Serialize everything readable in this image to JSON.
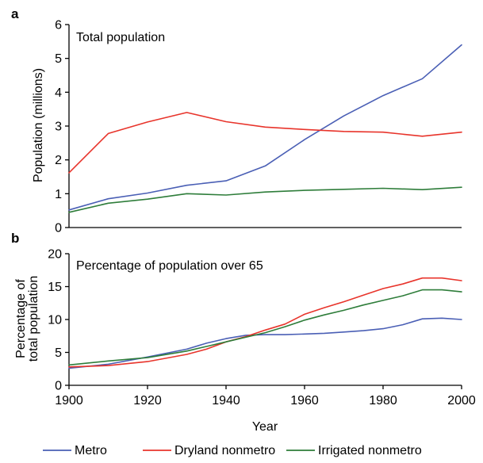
{
  "chart_data": [
    {
      "panel": "a",
      "type": "line",
      "title": "Total population",
      "ylabel": "Population (millions)",
      "xlabel": "",
      "xlim": [
        1900,
        2000
      ],
      "ylim": [
        0,
        6
      ],
      "yticks": [
        "0",
        "1",
        "2",
        "3",
        "4",
        "5",
        "6"
      ],
      "xticks": [],
      "grid": false,
      "series": [
        {
          "name": "Metro",
          "color": "#4a5fb5",
          "x": [
            1900,
            1910,
            1920,
            1930,
            1940,
            1950,
            1960,
            1970,
            1980,
            1990,
            2000
          ],
          "values": [
            0.52,
            0.85,
            1.02,
            1.25,
            1.38,
            1.82,
            2.6,
            3.3,
            3.9,
            4.4,
            5.4
          ]
        },
        {
          "name": "Dryland nonmetro",
          "color": "#e8342b",
          "x": [
            1900,
            1910,
            1920,
            1930,
            1940,
            1950,
            1960,
            1970,
            1980,
            1990,
            2000
          ],
          "values": [
            1.62,
            2.78,
            3.12,
            3.4,
            3.13,
            2.97,
            2.9,
            2.84,
            2.82,
            2.7,
            2.82
          ]
        },
        {
          "name": "Irrigated nonmetro",
          "color": "#2e7d3a",
          "x": [
            1900,
            1910,
            1920,
            1930,
            1940,
            1950,
            1960,
            1970,
            1980,
            1990,
            2000
          ],
          "values": [
            0.45,
            0.72,
            0.84,
            1.0,
            0.96,
            1.05,
            1.1,
            1.13,
            1.16,
            1.12,
            1.19
          ]
        }
      ]
    },
    {
      "panel": "b",
      "type": "line",
      "title": "Percentage of population over 65",
      "ylabel_lines": [
        "Percentage of",
        "total population"
      ],
      "xlabel": "Year",
      "xlim": [
        1900,
        2000
      ],
      "ylim": [
        0,
        20
      ],
      "yticks": [
        "0",
        "5",
        "10",
        "15",
        "20"
      ],
      "xticks": [
        "1900",
        "1920",
        "1940",
        "1960",
        "1980",
        "2000"
      ],
      "grid": false,
      "series": [
        {
          "name": "Metro",
          "color": "#4a5fb5",
          "x": [
            1900,
            1910,
            1920,
            1930,
            1935,
            1940,
            1945,
            1950,
            1955,
            1960,
            1965,
            1970,
            1975,
            1980,
            1985,
            1990,
            1995,
            2000
          ],
          "values": [
            2.6,
            3.2,
            4.3,
            5.5,
            6.4,
            7.1,
            7.6,
            7.7,
            7.7,
            7.8,
            7.9,
            8.1,
            8.3,
            8.6,
            9.2,
            10.1,
            10.2,
            10.0
          ]
        },
        {
          "name": "Dryland nonmetro",
          "color": "#e8342b",
          "x": [
            1900,
            1910,
            1920,
            1930,
            1935,
            1940,
            1945,
            1950,
            1955,
            1960,
            1965,
            1970,
            1975,
            1980,
            1985,
            1990,
            1995,
            2000
          ],
          "values": [
            2.8,
            3.0,
            3.6,
            4.7,
            5.5,
            6.6,
            7.4,
            8.4,
            9.3,
            10.8,
            11.8,
            12.7,
            13.7,
            14.7,
            15.4,
            16.3,
            16.3,
            15.9
          ]
        },
        {
          "name": "Irrigated nonmetro",
          "color": "#2e7d3a",
          "x": [
            1900,
            1910,
            1920,
            1930,
            1935,
            1940,
            1945,
            1950,
            1955,
            1960,
            1965,
            1970,
            1975,
            1980,
            1985,
            1990,
            1995,
            2000
          ],
          "values": [
            3.1,
            3.7,
            4.2,
            5.2,
            5.9,
            6.6,
            7.3,
            8.0,
            8.9,
            9.9,
            10.7,
            11.4,
            12.2,
            12.9,
            13.6,
            14.5,
            14.5,
            14.2
          ]
        }
      ]
    }
  ],
  "legend": [
    {
      "label": "Metro",
      "color": "#4a5fb5"
    },
    {
      "label": "Dryland nonmetro",
      "color": "#e8342b"
    },
    {
      "label": "Irrigated nonmetro",
      "color": "#2e7d3a"
    }
  ],
  "legend_position": "bottom"
}
